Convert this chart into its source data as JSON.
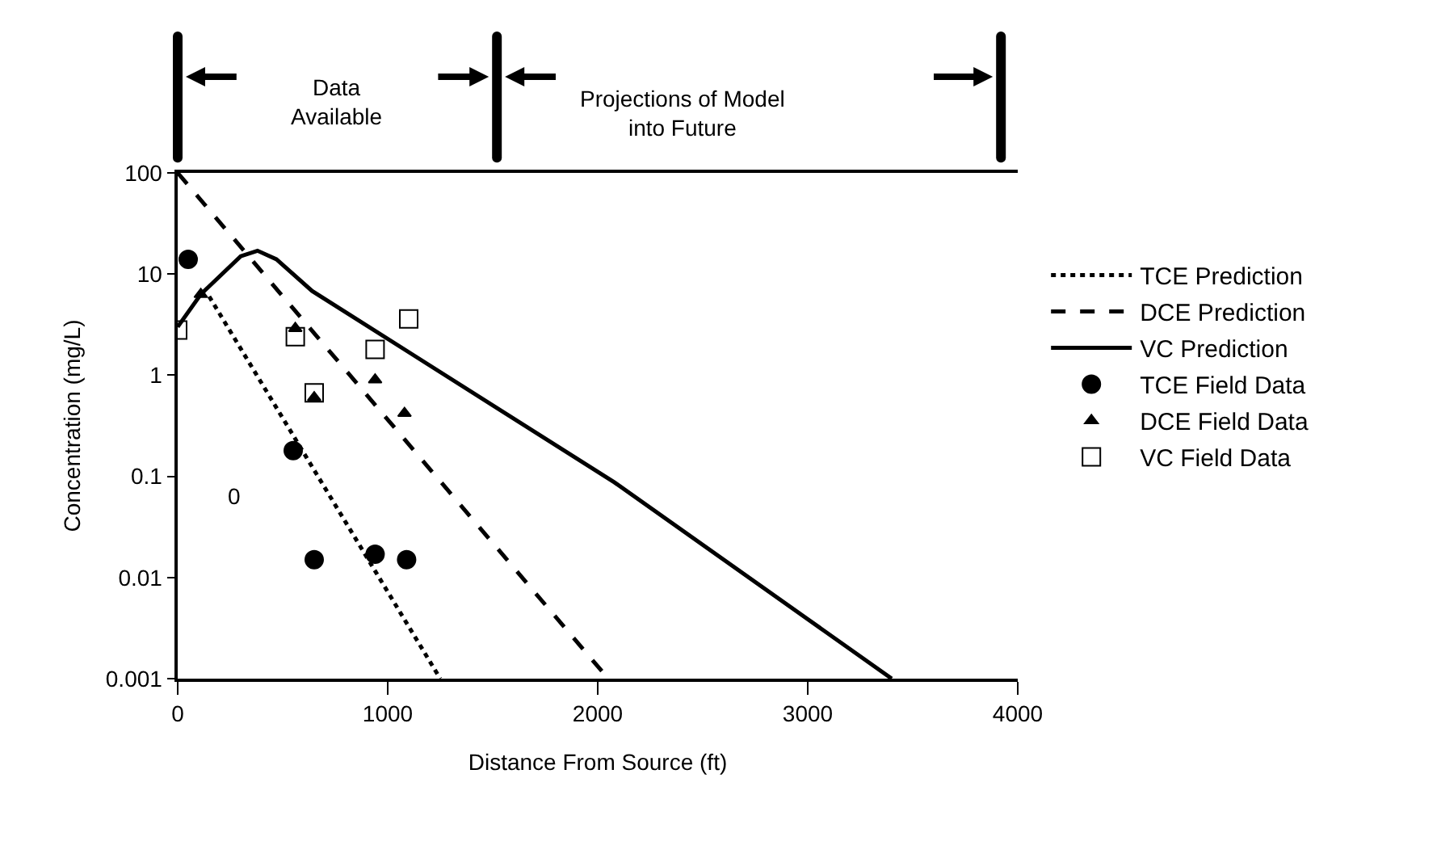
{
  "chart_data": {
    "type": "scatter",
    "xlabel": "Distance From Source (ft)",
    "ylabel": "Concentration (mg/L)",
    "log": "y",
    "xlim": [
      0,
      4000
    ],
    "xticks": [
      0,
      1000,
      2000,
      3000,
      4000
    ],
    "ylim": [
      0.001,
      100
    ],
    "yticks": [
      0.001,
      0.01,
      0.1,
      1,
      10,
      100
    ],
    "grid": false,
    "legend": "right",
    "annotations": [
      "Data Available",
      "Projections of Model into Future",
      "0"
    ],
    "series": [
      {
        "name": "TCE Prediction",
        "type": "line",
        "line_style": "dotted",
        "marker": "none",
        "color": "#000000",
        "x": [
          150,
          1250
        ],
        "values": [
          6,
          0.001
        ]
      },
      {
        "name": "DCE Prediction",
        "type": "line",
        "line_style": "dashed",
        "marker": "none",
        "color": "#000000",
        "x": [
          0,
          2050
        ],
        "values": [
          100,
          0.001
        ]
      },
      {
        "name": "VC Prediction",
        "type": "line",
        "line_style": "solid",
        "marker": "none",
        "color": "#000000",
        "x": [
          0,
          110,
          300,
          380,
          470,
          640,
          2080,
          3400
        ],
        "values": [
          3,
          6.3,
          15,
          17,
          14,
          6.8,
          0.087,
          0.001
        ]
      },
      {
        "name": "TCE Field Data",
        "marker": "circle",
        "color": "#000000",
        "x": [
          50,
          550,
          650,
          940,
          1090
        ],
        "values": [
          14,
          0.18,
          0.015,
          0.017,
          0.015
        ]
      },
      {
        "name": "DCE Field Data",
        "marker": "triangle",
        "color": "#000000",
        "x": [
          110,
          560,
          650,
          940,
          1080
        ],
        "values": [
          6.3,
          2.9,
          0.6,
          0.9,
          0.42
        ]
      },
      {
        "name": "VC Field Data",
        "marker": "square",
        "color": "#000000",
        "x": [
          0,
          560,
          650,
          940,
          1100
        ],
        "values": [
          2.8,
          2.4,
          0.67,
          1.8,
          3.6
        ]
      }
    ]
  }
}
